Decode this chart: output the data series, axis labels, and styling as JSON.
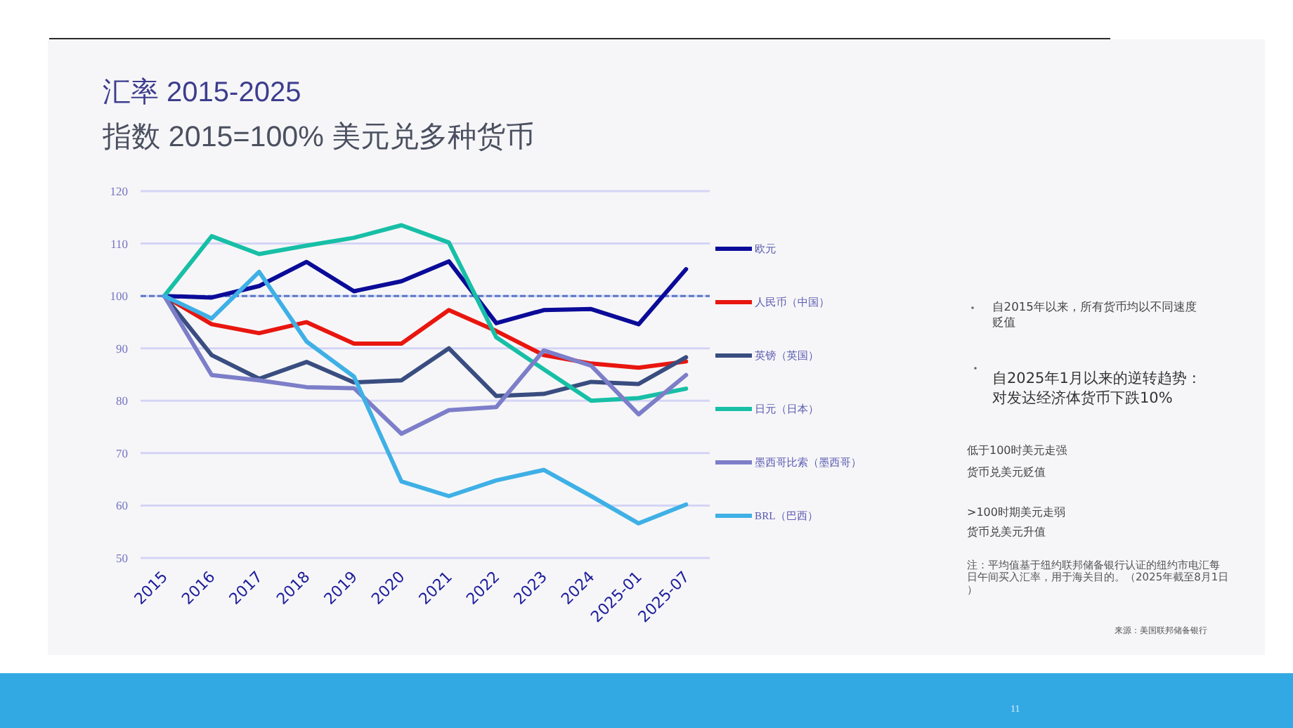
{
  "chart_data": {
    "type": "line",
    "title": "汇率 2015-2025",
    "subtitle": "指数 2015=100% 美元兑多种货币",
    "categories": [
      "2015",
      "2016",
      "2017",
      "2018",
      "2019",
      "2020",
      "2021",
      "2022",
      "2023",
      "2024",
      "2025-01",
      "2025-07"
    ],
    "series": [
      {
        "name": "欧元",
        "color": "#0b0b99",
        "values": [
          100,
          99.7,
          101.9,
          106.5,
          100.9,
          102.8,
          106.6,
          94.8,
          97.3,
          97.5,
          94.6,
          105.1
        ]
      },
      {
        "name": "人民币（中国）",
        "color": "#e8160f",
        "values": [
          100,
          94.6,
          92.9,
          95.0,
          90.9,
          90.9,
          97.3,
          93.3,
          88.7,
          87.1,
          86.3,
          87.5
        ]
      },
      {
        "name": "英镑（英国）",
        "color": "#3a4d80",
        "values": [
          100,
          88.7,
          84.2,
          87.4,
          83.5,
          83.9,
          90.0,
          80.9,
          81.3,
          83.6,
          83.2,
          88.3
        ]
      },
      {
        "name": "日元（日本）",
        "color": "#17bfa6",
        "values": [
          100,
          111.4,
          108.0,
          109.6,
          111.1,
          113.5,
          110.2,
          92.1,
          86.0,
          80.0,
          80.5,
          82.3
        ]
      },
      {
        "name": "墨西哥比索（墨西哥）",
        "color": "#7d7ec9",
        "values": [
          100,
          84.9,
          83.9,
          82.6,
          82.4,
          73.7,
          78.2,
          78.8,
          89.6,
          86.7,
          77.4,
          84.9
        ]
      },
      {
        "name": "BRL（巴西）",
        "color": "#3fb0e6",
        "values": [
          100,
          95.7,
          104.6,
          91.3,
          84.6,
          64.6,
          61.8,
          64.8,
          66.8,
          61.8,
          56.6,
          60.2
        ]
      }
    ],
    "ylim": [
      50,
      120
    ],
    "yticks": [
      50,
      60,
      70,
      80,
      90,
      100,
      110,
      120
    ],
    "grid": "y",
    "legend": "right",
    "ref_lines": [
      {
        "axis": "y",
        "value": 100,
        "color": "#5a78c8",
        "line_style": "dashed"
      }
    ],
    "annotations": [
      "自2015年以来，所有货币均以不同速度贬值",
      "自2025年1月以来的逆转趋势：对发达经济体货币下跌10%",
      "低于100时美元走强货币兑美元贬值",
      ">100时期美元走弱货币兑美元升值",
      "注：平均值基于纽约联邦储备银行认证的纽约市电汇每日午间买入汇率，用于海关目的。（2025年截至8月1日）",
      "来源：美国联邦储备银行",
      "11"
    ]
  }
}
